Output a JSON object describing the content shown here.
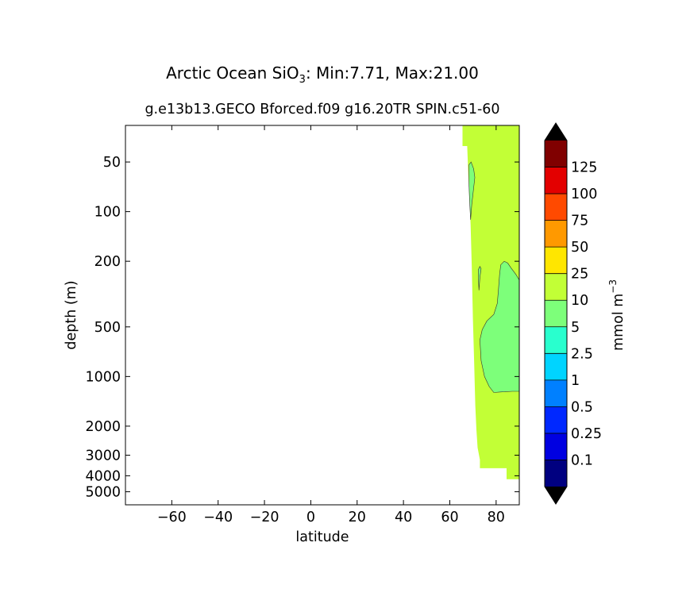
{
  "chart_data": {
    "type": "heatmap",
    "title_prefix": "Arctic Ocean SiO",
    "title_sub": "3",
    "title_suffix": ": Min:7.71, Max:21.00",
    "subtitle": "g.e13b13.GECO Bforced.f09 g16.20TR SPIN.c51-60",
    "xlabel": "latitude",
    "ylabel": "depth (m)",
    "xlim": [
      -80,
      90
    ],
    "x_ticks": [
      -60,
      -40,
      -20,
      0,
      20,
      40,
      60,
      80
    ],
    "x_tick_labels": [
      "−60",
      "−40",
      "−20",
      "0",
      "20",
      "40",
      "60",
      "80"
    ],
    "y_scale": "log (inverted)",
    "ylim": [
      6000,
      30
    ],
    "y_ticks": [
      50,
      100,
      200,
      500,
      1000,
      2000,
      3000,
      4000,
      5000
    ],
    "y_tick_labels": [
      "50",
      "100",
      "200",
      "500",
      "1000",
      "2000",
      "3000",
      "4000",
      "5000"
    ],
    "min": 7.71,
    "max": 21.0,
    "colorbar": {
      "label_main": "mmol m",
      "label_sup": "−3",
      "levels": [
        0.1,
        0.25,
        0.5,
        1,
        2.5,
        5,
        10,
        25,
        50,
        75,
        100,
        125
      ],
      "level_labels": [
        "0.1",
        "0.25",
        "0.5",
        "1",
        "2.5",
        "5",
        "10",
        "25",
        "50",
        "75",
        "100",
        "125"
      ],
      "colors": [
        "#000080",
        "#0000e1",
        "#0028ff",
        "#0080ff",
        "#00d4ff",
        "#29ffce",
        "#7dff7a",
        "#c2ff36",
        "#ffe600",
        "#ff9900",
        "#ff4a00",
        "#e30000",
        "#800000"
      ],
      "extend": "both",
      "extend_colors": [
        "#000000",
        "#000000"
      ]
    },
    "regions": [
      {
        "name": "10-25 mmol m-3",
        "color": "#c2ff36",
        "polygon": [
          [
            65.5,
            30
          ],
          [
            90,
            30
          ],
          [
            90,
            4200
          ],
          [
            84.5,
            4200
          ],
          [
            84.5,
            3600
          ],
          [
            81,
            3600
          ],
          [
            81,
            3600
          ],
          [
            73,
            3600
          ],
          [
            73,
            3200
          ],
          [
            72,
            2700
          ],
          [
            71.5,
            2100
          ],
          [
            71,
            1500
          ],
          [
            70.5,
            800
          ],
          [
            70,
            450
          ],
          [
            69.5,
            220
          ],
          [
            69,
            120
          ],
          [
            68,
            60
          ],
          [
            67.5,
            40
          ],
          [
            65.5,
            40
          ]
        ]
      },
      {
        "name": "5-10 mmol m-3 (near 50-110 m)",
        "color": "#7dff7a",
        "polygon": [
          [
            68.3,
            52
          ],
          [
            69.2,
            50
          ],
          [
            70.3,
            55
          ],
          [
            70.8,
            62
          ],
          [
            70.3,
            72
          ],
          [
            69.5,
            90
          ],
          [
            69,
            112
          ],
          [
            68.6,
            90
          ],
          [
            68.3,
            70
          ]
        ]
      },
      {
        "name": "5-10 mmol m-3 (near 220-300 m)",
        "color": "#7dff7a",
        "polygon": [
          [
            72.3,
            225
          ],
          [
            73,
            215
          ],
          [
            73.5,
            222
          ],
          [
            73,
            250
          ],
          [
            72.6,
            300
          ],
          [
            72.4,
            260
          ]
        ]
      },
      {
        "name": "5-10 mmol m-3 (subsurface core)",
        "color": "#7dff7a",
        "polygon": [
          [
            90,
            260
          ],
          [
            88.5,
            240
          ],
          [
            86.5,
            220
          ],
          [
            85,
            205
          ],
          [
            83.5,
            200
          ],
          [
            82,
            210
          ],
          [
            81.5,
            240
          ],
          [
            81,
            300
          ],
          [
            80.5,
            360
          ],
          [
            79,
            420
          ],
          [
            76,
            460
          ],
          [
            74,
            520
          ],
          [
            73,
            600
          ],
          [
            73.5,
            800
          ],
          [
            75,
            1000
          ],
          [
            77,
            1150
          ],
          [
            79,
            1250
          ],
          [
            82,
            1240
          ],
          [
            87,
            1230
          ],
          [
            90,
            1230
          ]
        ]
      }
    ]
  }
}
